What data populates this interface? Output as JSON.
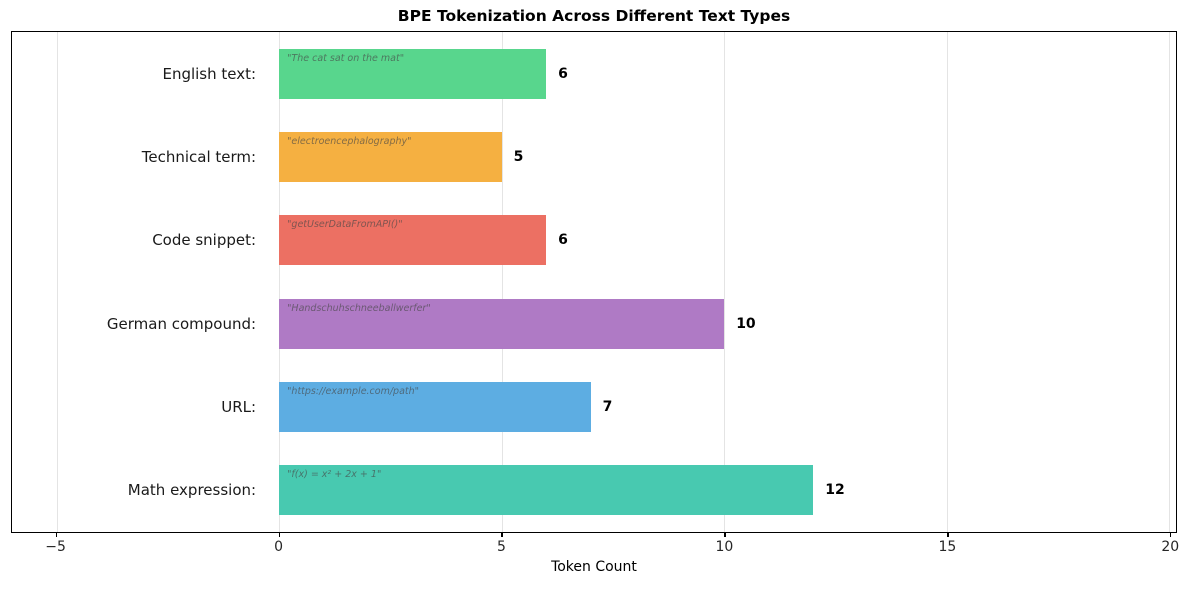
{
  "chart_data": {
    "type": "bar",
    "orientation": "horizontal",
    "title": "BPE Tokenization Across Different Text Types",
    "xlabel": "Token Count",
    "categories": [
      "English text:",
      "Technical term:",
      "Code snippet:",
      "German compound:",
      "URL:",
      "Math expression:"
    ],
    "values": [
      6,
      5,
      6,
      10,
      7,
      12
    ],
    "annotations": [
      "\"The cat sat on the mat\"",
      "\"electroencephalography\"",
      "\"getUserDataFromAPI()\"",
      "\"Handschuhschneeballwerfer\"",
      "\"https://example.com/path\"",
      "\"f(x) = x² + 2x + 1\""
    ],
    "value_labels": [
      "6",
      "5",
      "6",
      "10",
      "7",
      "12"
    ],
    "bar_colors": [
      "#58D68D",
      "#F5B041",
      "#EC7063",
      "#AF7AC5",
      "#5DADE2",
      "#48C9B0"
    ],
    "xticks": [
      -5,
      0,
      5,
      10,
      15,
      20
    ],
    "xtick_labels": [
      "−5",
      "0",
      "5",
      "10",
      "15",
      "20"
    ],
    "xlim": [
      -6,
      20.15
    ],
    "grid": true,
    "legend": false,
    "annotation_color": "rgba(70,70,70,0.65)"
  }
}
